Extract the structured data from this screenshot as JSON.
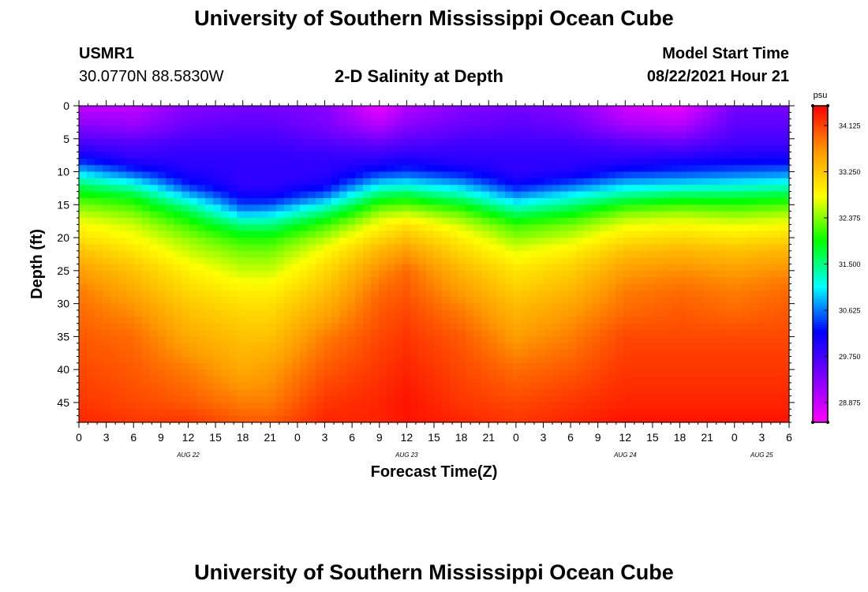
{
  "page": {
    "title_top": "University of Southern Mississippi Ocean Cube",
    "title_bottom": "University of Southern Mississippi Ocean Cube",
    "station_id": "USMR1",
    "station_coords": "30.0770N  88.5830W",
    "plot_subtitle": "2-D Salinity at Depth",
    "model_start_label": "Model Start Time",
    "model_start_value": "08/22/2021 Hour 21"
  },
  "colors": {
    "background": "#ffffff",
    "axis": "#000000"
  },
  "chart_data": {
    "type": "heatmap",
    "title": "2-D Salinity at Depth",
    "xlabel": "Forecast Time(Z)",
    "ylabel": "Depth (ft)",
    "x_tick_labels": [
      "0",
      "3",
      "6",
      "9",
      "12",
      "15",
      "18",
      "21",
      "0",
      "3",
      "6",
      "9",
      "12",
      "15",
      "18",
      "21",
      "0",
      "3",
      "6",
      "9",
      "12",
      "15",
      "18",
      "21",
      "0",
      "3",
      "6"
    ],
    "date_labels": [
      {
        "label": "AUG 22",
        "tick_index": 4
      },
      {
        "label": "AUG 23",
        "tick_index": 12
      },
      {
        "label": "AUG 24",
        "tick_index": 20
      },
      {
        "label": "AUG 25",
        "tick_index": 25
      }
    ],
    "x_range_hours": [
      0,
      78
    ],
    "y_tick_labels": [
      "0",
      "5",
      "10",
      "15",
      "20",
      "25",
      "30",
      "35",
      "40",
      "45"
    ],
    "y_range_ft": [
      0,
      48
    ],
    "colorbar": {
      "unit": "psu",
      "min": 28.5,
      "max": 34.5,
      "tick_values": [
        34.125,
        33.25,
        32.375,
        31.5,
        30.625,
        29.75,
        28.875
      ],
      "tick_labels": [
        "34.125",
        "33.250",
        "32.375",
        "31.500",
        "30.625",
        "29.750",
        "28.875"
      ],
      "palette": [
        "#ff00ff",
        "#7f00ff",
        "#0000ff",
        "#00ffff",
        "#00ff00",
        "#ffff00",
        "#ff9900",
        "#ff0000"
      ]
    },
    "profile_hours": [
      0,
      6,
      12,
      18,
      21,
      27,
      33,
      36,
      42,
      48,
      54,
      60,
      66,
      72,
      78
    ],
    "profile_depths_ft": [
      0,
      3,
      6,
      8,
      10,
      12,
      14,
      16,
      18,
      20,
      22,
      25,
      28,
      31,
      35,
      40,
      45,
      48
    ],
    "salinity_psu": [
      [
        28.9,
        29.3,
        29.8,
        30.2,
        30.9,
        31.6,
        32.1,
        32.5,
        32.8,
        33.0,
        33.3,
        33.6,
        33.8,
        33.9,
        34.0,
        34.1,
        34.2,
        34.3
      ],
      [
        28.9,
        29.2,
        29.7,
        29.9,
        30.4,
        31.2,
        31.9,
        32.3,
        32.6,
        32.8,
        33.0,
        33.3,
        33.5,
        33.7,
        33.9,
        34.0,
        34.1,
        34.2
      ],
      [
        29.3,
        29.5,
        29.8,
        29.9,
        30.0,
        30.3,
        31.0,
        31.7,
        32.1,
        32.4,
        32.6,
        32.9,
        33.1,
        33.3,
        33.5,
        33.8,
        34.0,
        34.2
      ],
      [
        29.4,
        29.6,
        29.8,
        29.9,
        29.9,
        29.9,
        30.2,
        30.7,
        31.5,
        32.0,
        32.3,
        32.6,
        32.9,
        33.1,
        33.3,
        33.5,
        33.8,
        34.0
      ],
      [
        29.4,
        29.6,
        29.8,
        29.9,
        29.9,
        29.9,
        30.2,
        30.8,
        31.5,
        32.0,
        32.3,
        32.6,
        32.9,
        33.1,
        33.3,
        33.6,
        33.8,
        34.0
      ],
      [
        29.3,
        29.4,
        29.7,
        29.9,
        29.9,
        30.1,
        30.7,
        31.5,
        32.1,
        32.5,
        32.8,
        33.1,
        33.3,
        33.5,
        33.8,
        34.0,
        34.2,
        34.3
      ],
      [
        28.6,
        29.0,
        29.6,
        29.9,
        30.3,
        31.0,
        31.8,
        32.4,
        32.8,
        33.1,
        33.4,
        33.7,
        33.9,
        34.0,
        34.1,
        34.2,
        34.3,
        34.3
      ],
      [
        29.0,
        29.3,
        29.7,
        30.0,
        30.4,
        31.1,
        31.9,
        32.5,
        33.0,
        33.3,
        33.6,
        33.9,
        34.0,
        34.1,
        34.2,
        34.3,
        34.4,
        34.4
      ],
      [
        29.3,
        29.5,
        29.8,
        29.9,
        30.2,
        30.8,
        31.5,
        32.2,
        32.6,
        32.9,
        33.1,
        33.4,
        33.6,
        33.8,
        34.0,
        34.1,
        34.2,
        34.3
      ],
      [
        29.4,
        29.6,
        29.8,
        29.9,
        29.9,
        30.2,
        30.8,
        31.5,
        32.1,
        32.4,
        32.7,
        33.0,
        33.2,
        33.4,
        33.6,
        33.9,
        34.1,
        34.2
      ],
      [
        29.3,
        29.5,
        29.8,
        29.9,
        30.0,
        30.5,
        31.2,
        31.8,
        32.3,
        32.6,
        32.9,
        33.2,
        33.4,
        33.6,
        33.8,
        34.0,
        34.2,
        34.3
      ],
      [
        28.8,
        29.1,
        29.7,
        29.9,
        30.3,
        30.9,
        31.6,
        32.3,
        32.7,
        33.0,
        33.3,
        33.6,
        33.8,
        33.9,
        34.1,
        34.2,
        34.3,
        34.4
      ],
      [
        28.6,
        29.0,
        29.6,
        30.0,
        30.4,
        31.0,
        31.8,
        32.4,
        32.8,
        33.1,
        33.4,
        33.7,
        33.9,
        34.0,
        34.1,
        34.2,
        34.3,
        34.4
      ],
      [
        29.4,
        29.6,
        29.8,
        30.1,
        30.5,
        31.1,
        31.8,
        32.3,
        32.7,
        33.0,
        33.3,
        33.6,
        33.8,
        33.9,
        34.1,
        34.2,
        34.3,
        34.4
      ],
      [
        29.4,
        29.6,
        29.8,
        30.1,
        30.6,
        31.2,
        31.9,
        32.4,
        32.8,
        33.1,
        33.4,
        33.7,
        33.9,
        34.0,
        34.1,
        34.2,
        34.3,
        34.4
      ]
    ]
  }
}
